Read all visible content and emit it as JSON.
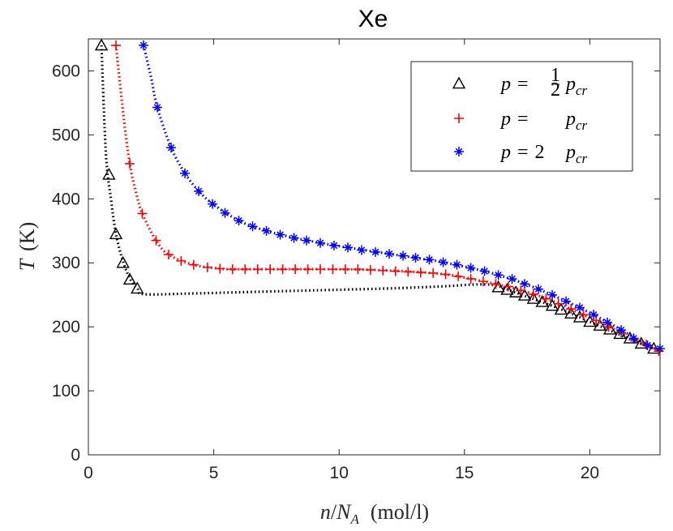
{
  "chart_data": {
    "type": "scatter",
    "title": "Xe",
    "xlabel": {
      "var": "n",
      "sep": "/",
      "sub_var": "N",
      "sub": "A",
      "unit": "(mol/l)"
    },
    "ylabel": {
      "var": "T",
      "unit": "(K)"
    },
    "xlim": [
      0,
      22.8
    ],
    "ylim": [
      0,
      650
    ],
    "xticks": [
      0,
      5,
      10,
      15,
      20
    ],
    "yticks": [
      0,
      100,
      200,
      300,
      400,
      500,
      600
    ],
    "grid": false,
    "legend_position": "top-right",
    "series": [
      {
        "name": "p = ½ p_cr",
        "legend": {
          "lhs": "p",
          "eq": "=",
          "frac_num": "1",
          "frac_den": "2",
          "pre": "",
          "rhs_var": "p",
          "rhs_sub": "cr"
        },
        "marker": "triangle",
        "color": "#000000",
        "points": [
          [
            0.52,
            640
          ],
          [
            0.82,
            438
          ],
          [
            1.1,
            345
          ],
          [
            1.38,
            300
          ],
          [
            1.65,
            274
          ],
          [
            1.95,
            260
          ],
          [
            16.35,
            262
          ],
          [
            16.7,
            258
          ],
          [
            17.05,
            254
          ],
          [
            17.4,
            249
          ],
          [
            17.75,
            244
          ],
          [
            18.1,
            239
          ],
          [
            18.5,
            233
          ],
          [
            18.85,
            227
          ],
          [
            19.25,
            221
          ],
          [
            19.6,
            215
          ],
          [
            20.0,
            208
          ],
          [
            20.4,
            202
          ],
          [
            20.8,
            196
          ],
          [
            21.2,
            189
          ],
          [
            21.6,
            182
          ],
          [
            22.05,
            174
          ],
          [
            22.55,
            166
          ]
        ],
        "curve": [
          [
            0.52,
            640
          ],
          [
            0.7,
            470
          ],
          [
            0.9,
            400
          ],
          [
            1.1,
            345
          ],
          [
            1.4,
            300
          ],
          [
            1.7,
            272
          ],
          [
            1.95,
            260
          ],
          [
            2.2,
            251
          ],
          [
            4,
            252
          ],
          [
            6,
            254
          ],
          [
            8,
            256
          ],
          [
            10,
            258
          ],
          [
            12,
            260
          ],
          [
            14,
            263
          ],
          [
            16,
            266
          ],
          [
            17,
            254
          ],
          [
            18,
            240
          ],
          [
            19,
            225
          ],
          [
            20,
            208
          ],
          [
            21,
            191
          ],
          [
            22,
            174
          ],
          [
            22.6,
            165
          ]
        ]
      },
      {
        "name": "p = p_cr",
        "legend": {
          "lhs": "p",
          "eq": "=",
          "frac_num": "",
          "frac_den": "",
          "pre": "",
          "rhs_var": "p",
          "rhs_sub": "cr"
        },
        "marker": "plus",
        "color": "#ff0000",
        "points": [
          [
            1.1,
            640
          ],
          [
            1.65,
            455
          ],
          [
            2.15,
            377
          ],
          [
            2.7,
            335
          ],
          [
            3.2,
            313
          ],
          [
            3.7,
            303
          ],
          [
            4.2,
            297
          ],
          [
            4.75,
            293
          ],
          [
            5.25,
            291
          ],
          [
            5.75,
            290
          ],
          [
            6.25,
            290
          ],
          [
            6.75,
            290
          ],
          [
            7.25,
            290
          ],
          [
            7.75,
            290
          ],
          [
            8.25,
            290
          ],
          [
            8.75,
            290
          ],
          [
            9.25,
            290
          ],
          [
            9.75,
            290
          ],
          [
            10.25,
            290
          ],
          [
            10.75,
            290
          ],
          [
            11.25,
            289
          ],
          [
            11.75,
            288
          ],
          [
            12.25,
            287
          ],
          [
            12.75,
            286
          ],
          [
            13.25,
            285
          ],
          [
            13.75,
            284
          ],
          [
            14.25,
            282
          ],
          [
            14.75,
            279
          ],
          [
            15.25,
            275
          ],
          [
            15.75,
            271
          ],
          [
            16.25,
            267
          ],
          [
            16.75,
            263
          ],
          [
            17.25,
            257
          ],
          [
            17.75,
            251
          ],
          [
            18.25,
            244
          ],
          [
            18.75,
            236
          ],
          [
            19.25,
            228
          ],
          [
            19.75,
            219
          ],
          [
            20.25,
            210
          ],
          [
            20.75,
            200
          ],
          [
            21.25,
            191
          ],
          [
            21.75,
            181
          ],
          [
            22.25,
            172
          ],
          [
            22.75,
            162
          ]
        ],
        "curve": [
          [
            1.1,
            640
          ],
          [
            1.4,
            530
          ],
          [
            1.65,
            455
          ],
          [
            1.9,
            410
          ],
          [
            2.15,
            377
          ],
          [
            2.7,
            335
          ],
          [
            3.2,
            313
          ],
          [
            4.2,
            297
          ],
          [
            5.25,
            291
          ],
          [
            6,
            290
          ],
          [
            10,
            290
          ],
          [
            12,
            288
          ],
          [
            14,
            283
          ],
          [
            15,
            277
          ],
          [
            16,
            269
          ],
          [
            17,
            260
          ],
          [
            18,
            248
          ],
          [
            19,
            232
          ],
          [
            20,
            214
          ],
          [
            21,
            196
          ],
          [
            22,
            177
          ],
          [
            22.75,
            162
          ]
        ]
      },
      {
        "name": "p = 2 p_cr",
        "legend": {
          "lhs": "p",
          "eq": "=",
          "frac_num": "",
          "frac_den": "",
          "pre": "2",
          "rhs_var": "p",
          "rhs_sub": "cr"
        },
        "marker": "asterisk",
        "color": "#0000ff",
        "points": [
          [
            2.2,
            640
          ],
          [
            2.75,
            543
          ],
          [
            3.3,
            480
          ],
          [
            3.85,
            440
          ],
          [
            4.4,
            412
          ],
          [
            4.95,
            392
          ],
          [
            5.45,
            378
          ],
          [
            6.0,
            366
          ],
          [
            6.55,
            357
          ],
          [
            7.1,
            350
          ],
          [
            7.65,
            344
          ],
          [
            8.2,
            339
          ],
          [
            8.7,
            335
          ],
          [
            9.25,
            331
          ],
          [
            9.8,
            327
          ],
          [
            10.35,
            324
          ],
          [
            10.9,
            320
          ],
          [
            11.45,
            317
          ],
          [
            12.0,
            314
          ],
          [
            12.55,
            311
          ],
          [
            13.05,
            308
          ],
          [
            13.6,
            305
          ],
          [
            14.15,
            301
          ],
          [
            14.7,
            297
          ],
          [
            15.25,
            292
          ],
          [
            15.8,
            287
          ],
          [
            16.35,
            281
          ],
          [
            16.9,
            275
          ],
          [
            17.4,
            267
          ],
          [
            17.95,
            259
          ],
          [
            18.5,
            250
          ],
          [
            19.05,
            240
          ],
          [
            19.6,
            230
          ],
          [
            20.15,
            219
          ],
          [
            20.7,
            207
          ],
          [
            21.25,
            195
          ],
          [
            21.75,
            182
          ],
          [
            22.3,
            171
          ],
          [
            22.8,
            166
          ]
        ],
        "curve": [
          [
            2.2,
            640
          ],
          [
            2.5,
            590
          ],
          [
            2.75,
            543
          ],
          [
            3.3,
            480
          ],
          [
            3.85,
            440
          ],
          [
            4.4,
            412
          ],
          [
            5,
            391
          ],
          [
            6,
            366
          ],
          [
            7,
            351
          ],
          [
            8,
            341
          ],
          [
            9,
            333
          ],
          [
            10,
            326
          ],
          [
            11,
            320
          ],
          [
            12,
            314
          ],
          [
            13,
            308
          ],
          [
            14,
            302
          ],
          [
            15,
            294
          ],
          [
            16,
            285
          ],
          [
            17,
            273
          ],
          [
            18,
            258
          ],
          [
            19,
            241
          ],
          [
            20,
            222
          ],
          [
            21,
            201
          ],
          [
            22,
            178
          ],
          [
            22.8,
            162
          ]
        ]
      }
    ]
  }
}
